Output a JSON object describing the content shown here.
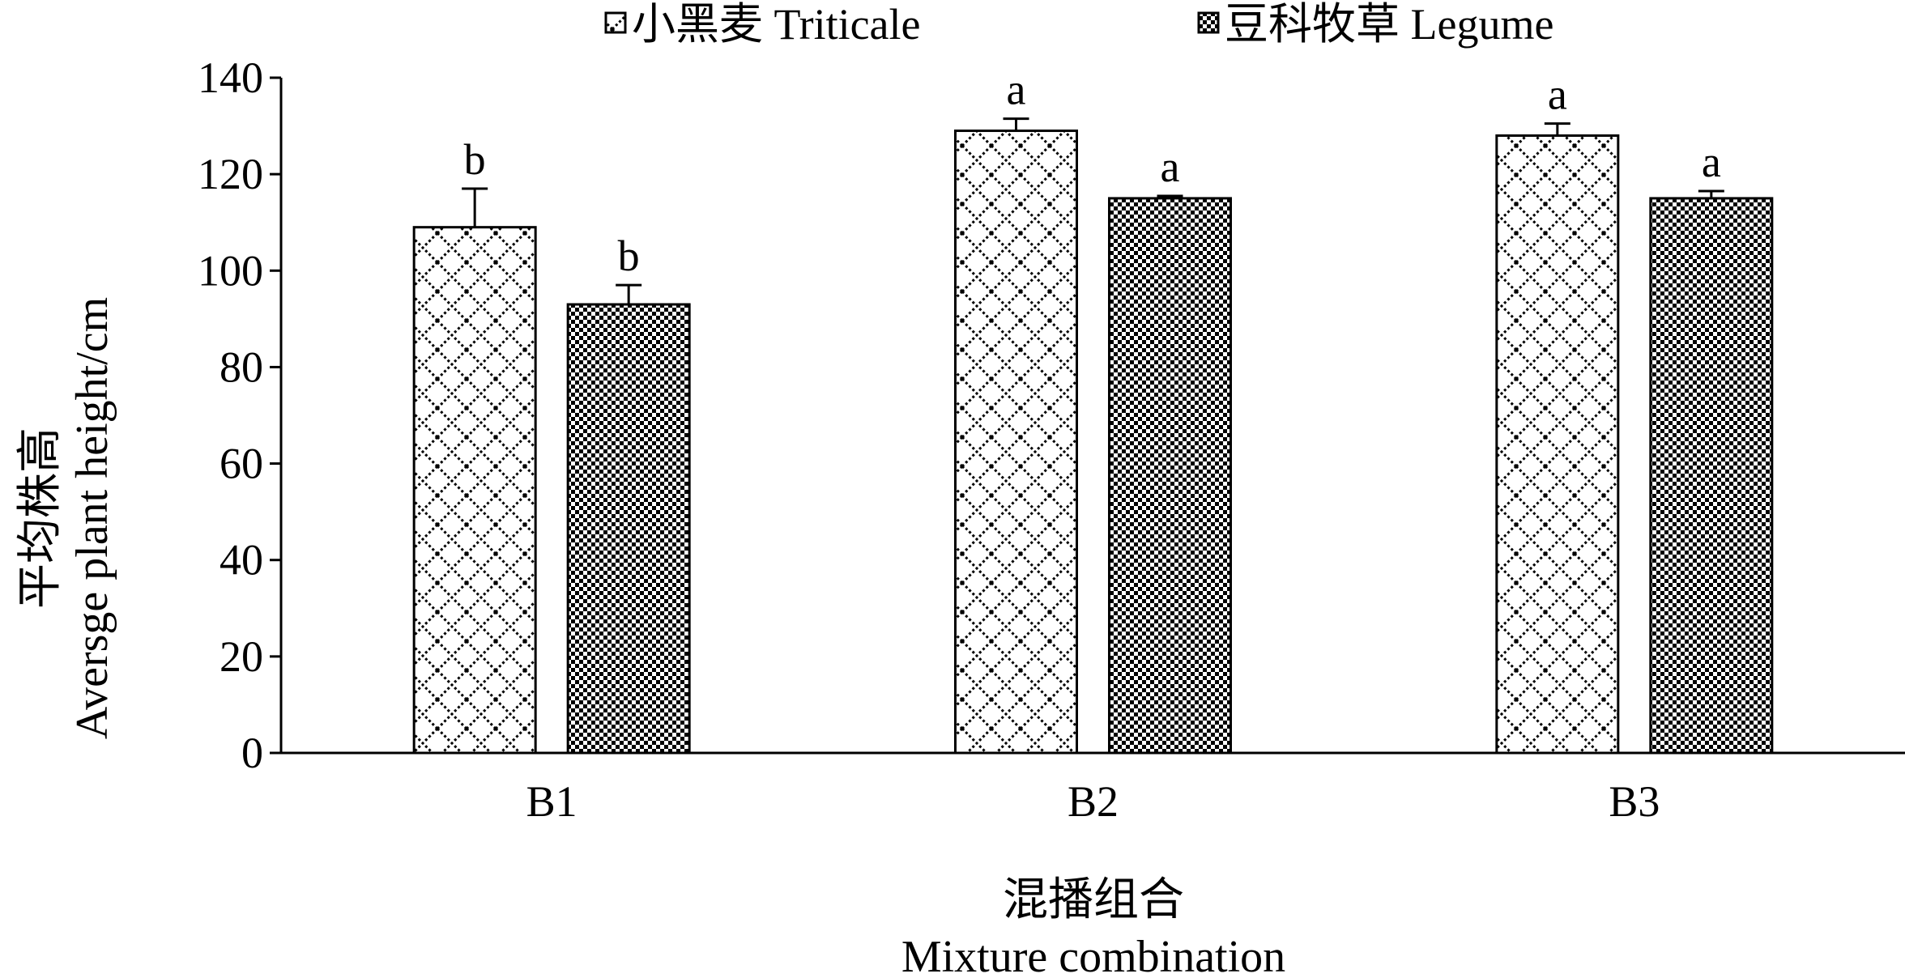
{
  "chart_data": {
    "type": "bar",
    "categories": [
      "B1",
      "B2",
      "B3"
    ],
    "series": [
      {
        "name": "小黑麦 Triticale",
        "values": [
          109,
          129,
          128
        ],
        "errors": [
          8,
          2.5,
          2.5
        ],
        "labels": [
          "b",
          "a",
          "a"
        ]
      },
      {
        "name": "豆科牧草 Legume",
        "values": [
          93,
          115,
          115
        ],
        "errors": [
          4,
          0.5,
          1.5
        ],
        "labels": [
          "b",
          "a",
          "a"
        ]
      }
    ],
    "ylim": [
      0,
      140
    ],
    "yticks": [
      0,
      20,
      40,
      60,
      80,
      100,
      120,
      140
    ],
    "ylabel_lines": [
      "平均株高",
      "Aversge plant height/cm"
    ],
    "xlabel_lines": [
      "混播组合",
      "Mixture combination"
    ],
    "grid": false,
    "legend_position": "top-center"
  }
}
